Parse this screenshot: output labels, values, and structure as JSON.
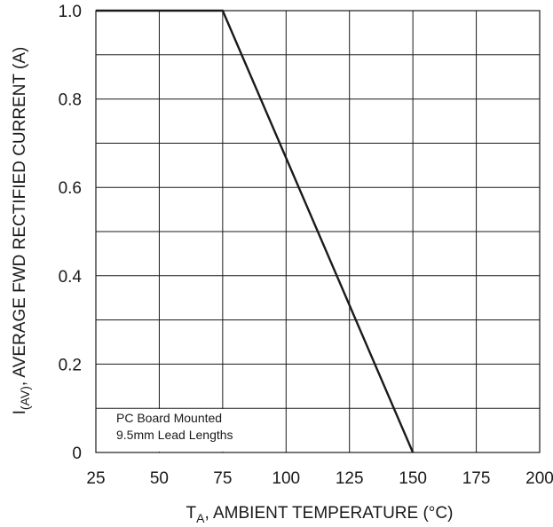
{
  "chart_data": {
    "type": "line",
    "xlabel": {
      "prefix": "T",
      "subscript": "A",
      "suffix": ", AMBIENT TEMPERATURE (°C)"
    },
    "ylabel": {
      "prefix": "I",
      "subscript": "(AV)",
      "suffix": ", AVERAGE FWD RECTIFIED CURRENT (A)"
    },
    "xlim": [
      25,
      200
    ],
    "ylim": [
      0,
      1.0
    ],
    "x_major_ticks": [
      25,
      50,
      75,
      100,
      125,
      150,
      175,
      200
    ],
    "x_tick_labels": [
      "25",
      "50",
      "75",
      "100",
      "125",
      "150",
      "175",
      "200"
    ],
    "y_major_ticks": [
      0,
      0.2,
      0.4,
      0.6,
      0.8,
      1.0
    ],
    "y_tick_labels": [
      "0",
      "0.2",
      "0.4",
      "0.6",
      "0.8",
      "1.0"
    ],
    "y_minor_grid": [
      0.1,
      0.3,
      0.5,
      0.7,
      0.9
    ],
    "grid": true,
    "annotation": {
      "lines": [
        "PC Board Mounted",
        "9.5mm Lead Lengths"
      ]
    },
    "series": [
      {
        "x": [
          25,
          75,
          150
        ],
        "y": [
          1.0,
          1.0,
          0
        ]
      }
    ]
  }
}
